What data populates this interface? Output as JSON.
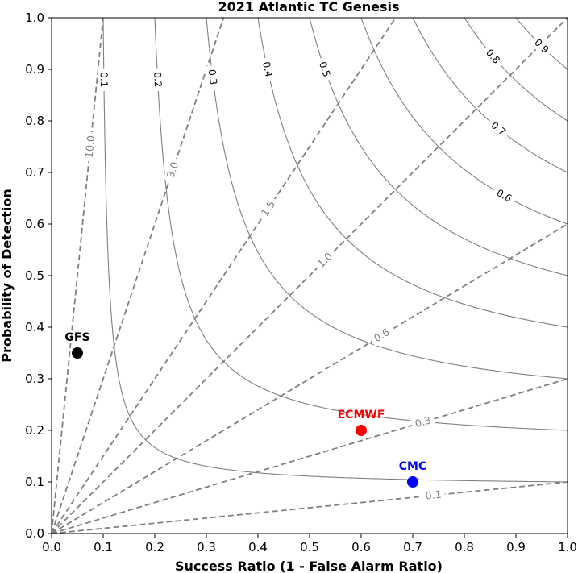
{
  "chart_data": {
    "type": "scatter",
    "title": "2021 Atlantic TC Genesis",
    "xlabel": "Success Ratio (1 - False Alarm Ratio)",
    "ylabel": "Probability of Detection",
    "xlim": [
      0,
      1
    ],
    "ylim": [
      0,
      1
    ],
    "xticks": [
      "0.0",
      "0.1",
      "0.2",
      "0.3",
      "0.4",
      "0.5",
      "0.6",
      "0.7",
      "0.8",
      "0.9",
      "1.0"
    ],
    "yticks": [
      "0.0",
      "0.1",
      "0.2",
      "0.3",
      "0.4",
      "0.5",
      "0.6",
      "0.7",
      "0.8",
      "0.9",
      "1.0"
    ],
    "csi_contours": {
      "values": [
        0.1,
        0.2,
        0.3,
        0.4,
        0.5,
        0.6,
        0.7,
        0.8,
        0.9
      ],
      "labels": [
        "0.1",
        "0.2",
        "0.3",
        "0.4",
        "0.5",
        "0.6",
        "0.7",
        "0.8",
        "0.9"
      ],
      "color": "#808080"
    },
    "bias_lines": {
      "values": [
        0.1,
        0.3,
        0.6,
        1.0,
        1.5,
        3.0,
        10.0
      ],
      "labels": [
        "0.1",
        "0.3",
        "0.6",
        "1.0",
        "1.5",
        "3.0",
        "10.0"
      ],
      "color": "#808080",
      "style": "dashed"
    },
    "series": [
      {
        "name": "GFS",
        "x": 0.05,
        "y": 0.35,
        "color": "#000000"
      },
      {
        "name": "ECMWF",
        "x": 0.6,
        "y": 0.2,
        "color": "#ff0000"
      },
      {
        "name": "CMC",
        "x": 0.7,
        "y": 0.1,
        "color": "#0000ff"
      }
    ],
    "grid": false
  }
}
